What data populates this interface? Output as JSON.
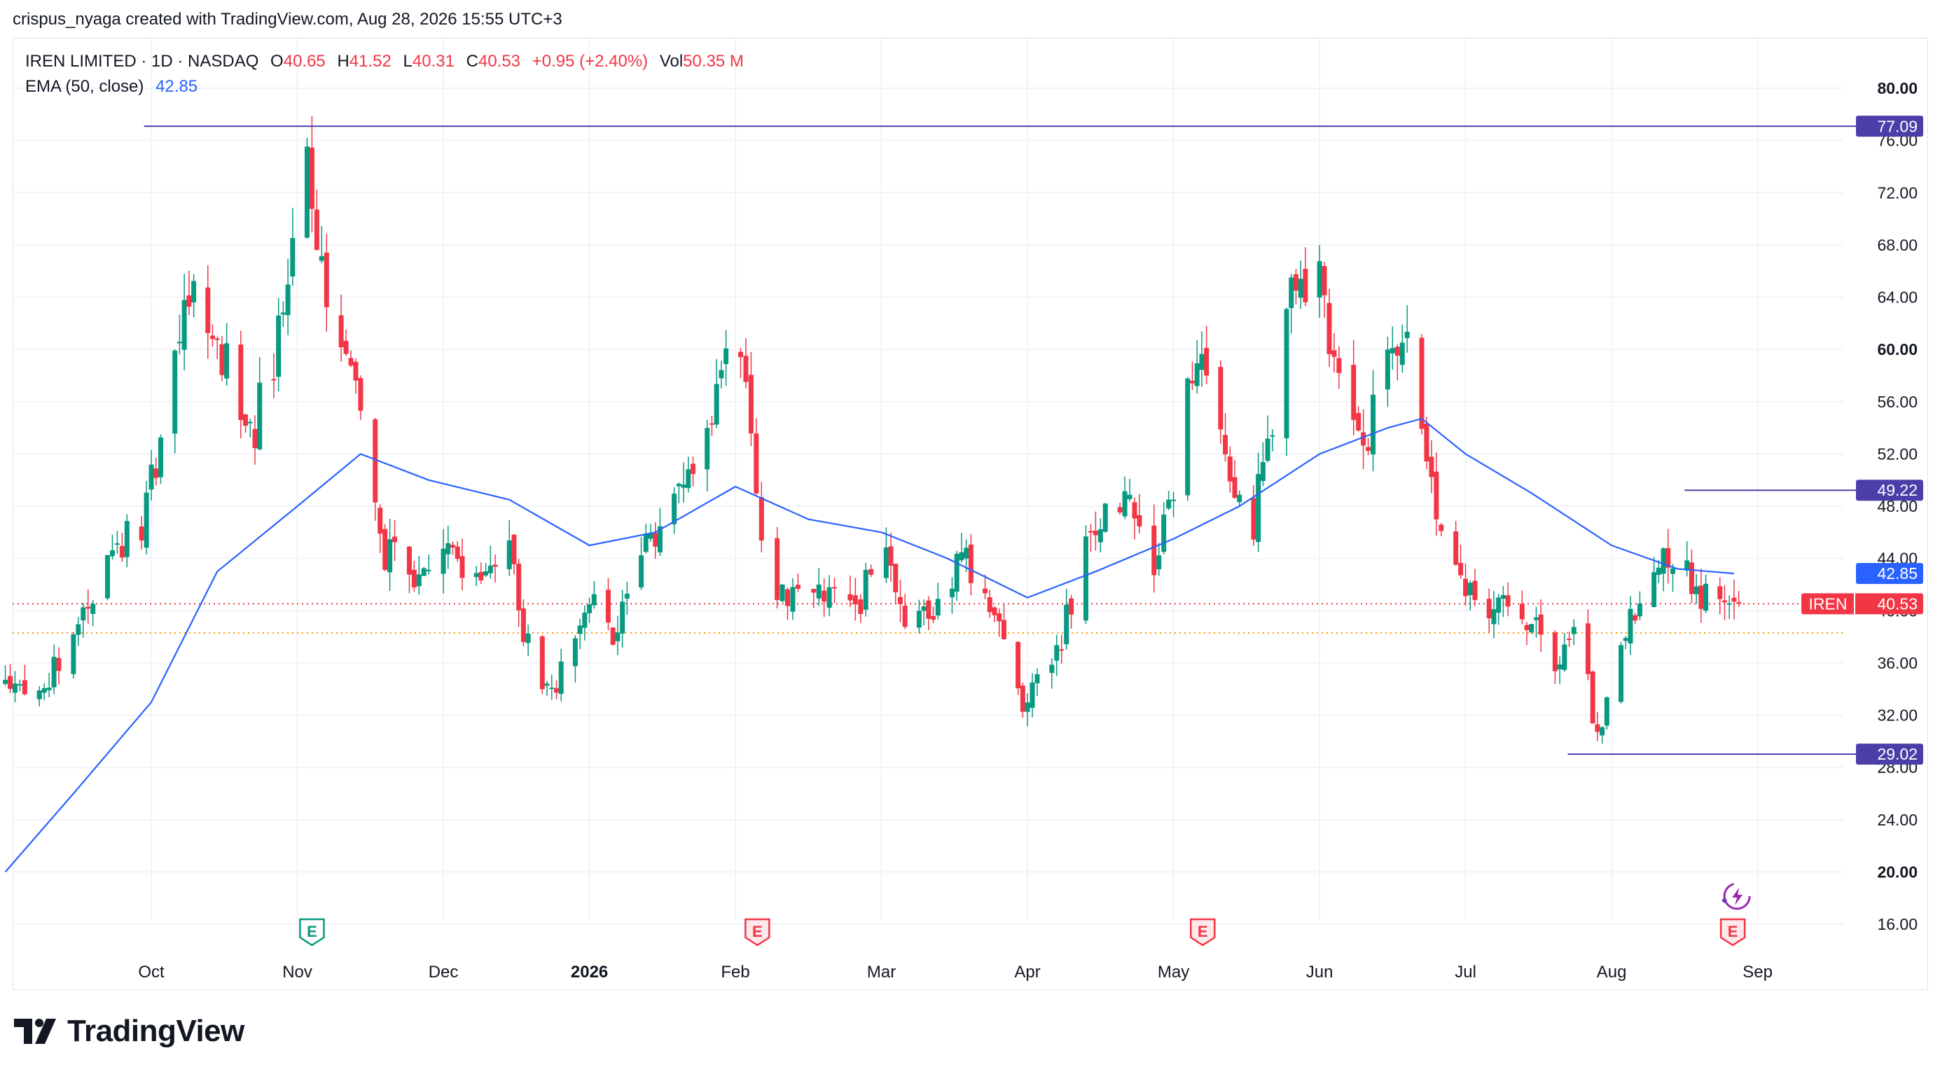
{
  "header": {
    "credit": "crispus_nyaga created with TradingView.com, Aug 28, 2026 15:55 UTC+3"
  },
  "legend": {
    "symbol": "IREN LIMITED · 1D · NASDAQ",
    "o_label": "O",
    "o_value": "40.65",
    "h_label": "H",
    "h_value": "41.52",
    "l_label": "L",
    "l_value": "40.31",
    "c_label": "C",
    "c_value": "40.53",
    "change": "+0.95 (+2.40%)",
    "vol_label": "Vol",
    "vol_value": "50.35 M",
    "ema_label": "EMA (50, close)",
    "ema_value": "42.85"
  },
  "brand": {
    "name": "TradingView"
  },
  "colors": {
    "up": "#089981",
    "down": "#f23645",
    "ema": "#2962ff",
    "level": "#4b3ea8",
    "price_tag": "#f23645",
    "ema_tag": "#2962ff"
  },
  "chart_data": {
    "type": "candlestick",
    "ylim": [
      14,
      82
    ],
    "yticks": [
      "16.00",
      "20.00",
      "24.00",
      "28.00",
      "32.00",
      "36.00",
      "40.00",
      "44.00",
      "48.00",
      "52.00",
      "56.00",
      "60.00",
      "64.00",
      "68.00",
      "72.00",
      "76.00",
      "80.00"
    ],
    "x_labels": [
      {
        "label": "Oct",
        "month": 10,
        "bold": false
      },
      {
        "label": "Nov",
        "month": 11,
        "bold": false
      },
      {
        "label": "Dec",
        "month": 12,
        "bold": false
      },
      {
        "label": "2026",
        "month": 13,
        "bold": true
      },
      {
        "label": "Feb",
        "month": 14,
        "bold": false
      },
      {
        "label": "Mar",
        "month": 15,
        "bold": false
      },
      {
        "label": "Apr",
        "month": 16,
        "bold": false
      },
      {
        "label": "May",
        "month": 17,
        "bold": false
      },
      {
        "label": "Jun",
        "month": 18,
        "bold": false
      },
      {
        "label": "Jul",
        "month": 19,
        "bold": false
      },
      {
        "label": "Aug",
        "month": 20,
        "bold": false
      },
      {
        "label": "Sep",
        "month": 21,
        "bold": false
      }
    ],
    "levels": [
      {
        "value": 77.09,
        "label": "77.09",
        "from_month": 9.95
      },
      {
        "value": 49.22,
        "label": "49.22",
        "from_month": 20.5
      },
      {
        "value": 29.02,
        "label": "29.02",
        "from_month": 19.7
      }
    ],
    "price_tag": {
      "symbol": "IREN",
      "value": 40.53,
      "label": "40.53"
    },
    "ema_tag": {
      "value": 42.85,
      "label": "42.85"
    },
    "dotted_lines": [
      40.53,
      38.3
    ],
    "earnings": [
      {
        "letter": "E",
        "month": 11.1,
        "kind": "past"
      },
      {
        "letter": "E",
        "month": 14.15,
        "kind": "future"
      },
      {
        "letter": "E",
        "month": 17.2,
        "kind": "future"
      },
      {
        "letter": "E",
        "month": 20.83,
        "kind": "future"
      }
    ],
    "anchors": [
      [
        "2025-09-08",
        34
      ],
      [
        "2025-09-15",
        38
      ],
      [
        "2025-09-22",
        44
      ],
      [
        "2025-09-29",
        47
      ],
      [
        "2025-10-06",
        58
      ],
      [
        "2025-10-10",
        66
      ],
      [
        "2025-10-16",
        60
      ],
      [
        "2025-10-22",
        53
      ],
      [
        "2025-10-29",
        62
      ],
      [
        "2025-11-03",
        76
      ],
      [
        "2025-11-06",
        66
      ],
      [
        "2025-11-10",
        61
      ],
      [
        "2025-11-14",
        55
      ],
      [
        "2025-11-18",
        45
      ],
      [
        "2025-11-25",
        42
      ],
      [
        "2025-12-01",
        44
      ],
      [
        "2025-12-08",
        42
      ],
      [
        "2025-12-15",
        44
      ],
      [
        "2025-12-19",
        37
      ],
      [
        "2025-12-24",
        34
      ],
      [
        "2026-01-02",
        41
      ],
      [
        "2026-01-06",
        38
      ],
      [
        "2026-01-12",
        44
      ],
      [
        "2026-01-16",
        46
      ],
      [
        "2026-01-22",
        51
      ],
      [
        "2026-01-27",
        55
      ],
      [
        "2026-01-30",
        61
      ],
      [
        "2026-02-03",
        57
      ],
      [
        "2026-02-06",
        44
      ],
      [
        "2026-02-10",
        41
      ],
      [
        "2026-02-17",
        42
      ],
      [
        "2026-02-24",
        40
      ],
      [
        "2026-03-02",
        45
      ],
      [
        "2026-03-06",
        40
      ],
      [
        "2026-03-12",
        39
      ],
      [
        "2026-03-18",
        44
      ],
      [
        "2026-03-24",
        41
      ],
      [
        "2026-03-30",
        33
      ],
      [
        "2026-04-02",
        34
      ],
      [
        "2026-04-07",
        37
      ],
      [
        "2026-04-10",
        41
      ],
      [
        "2026-04-14",
        46
      ],
      [
        "2026-04-21",
        48
      ],
      [
        "2026-04-27",
        44
      ],
      [
        "2026-05-01",
        48
      ],
      [
        "2026-05-04",
        57
      ],
      [
        "2026-05-07",
        61
      ],
      [
        "2026-05-12",
        52
      ],
      [
        "2026-05-18",
        47
      ],
      [
        "2026-05-22",
        55
      ],
      [
        "2026-05-27",
        66
      ],
      [
        "2026-06-01",
        65
      ],
      [
        "2026-06-04",
        60
      ],
      [
        "2026-06-10",
        53
      ],
      [
        "2026-06-15",
        58
      ],
      [
        "2026-06-19",
        60
      ],
      [
        "2026-06-23",
        50
      ],
      [
        "2026-06-29",
        44
      ],
      [
        "2026-07-03",
        41
      ],
      [
        "2026-07-09",
        40
      ],
      [
        "2026-07-15",
        39
      ],
      [
        "2026-07-20",
        35
      ],
      [
        "2026-07-24",
        40
      ],
      [
        "2026-07-29",
        30
      ],
      [
        "2026-08-03",
        38
      ],
      [
        "2026-08-07",
        40
      ],
      [
        "2026-08-12",
        45
      ],
      [
        "2026-08-17",
        43
      ],
      [
        "2026-08-21",
        41
      ],
      [
        "2026-08-27",
        40.53
      ]
    ],
    "ema_anchors": [
      [
        "2025-09-01",
        20
      ],
      [
        "2025-09-15",
        26
      ],
      [
        "2025-10-01",
        33
      ],
      [
        "2025-10-15",
        43
      ],
      [
        "2025-11-01",
        48
      ],
      [
        "2025-11-14",
        52
      ],
      [
        "2025-11-28",
        50
      ],
      [
        "2025-12-15",
        48.5
      ],
      [
        "2026-01-01",
        45
      ],
      [
        "2026-01-15",
        46
      ],
      [
        "2026-02-01",
        49.5
      ],
      [
        "2026-02-15",
        47
      ],
      [
        "2026-03-01",
        46
      ],
      [
        "2026-03-15",
        44
      ],
      [
        "2026-04-01",
        41
      ],
      [
        "2026-04-15",
        43
      ],
      [
        "2026-05-01",
        45.5
      ],
      [
        "2026-05-15",
        48
      ],
      [
        "2026-06-01",
        52
      ],
      [
        "2026-06-15",
        54
      ],
      [
        "2026-06-22",
        54.7
      ],
      [
        "2026-07-01",
        52
      ],
      [
        "2026-07-15",
        49
      ],
      [
        "2026-08-01",
        45
      ],
      [
        "2026-08-15",
        43.2
      ],
      [
        "2026-08-27",
        42.85
      ]
    ]
  }
}
